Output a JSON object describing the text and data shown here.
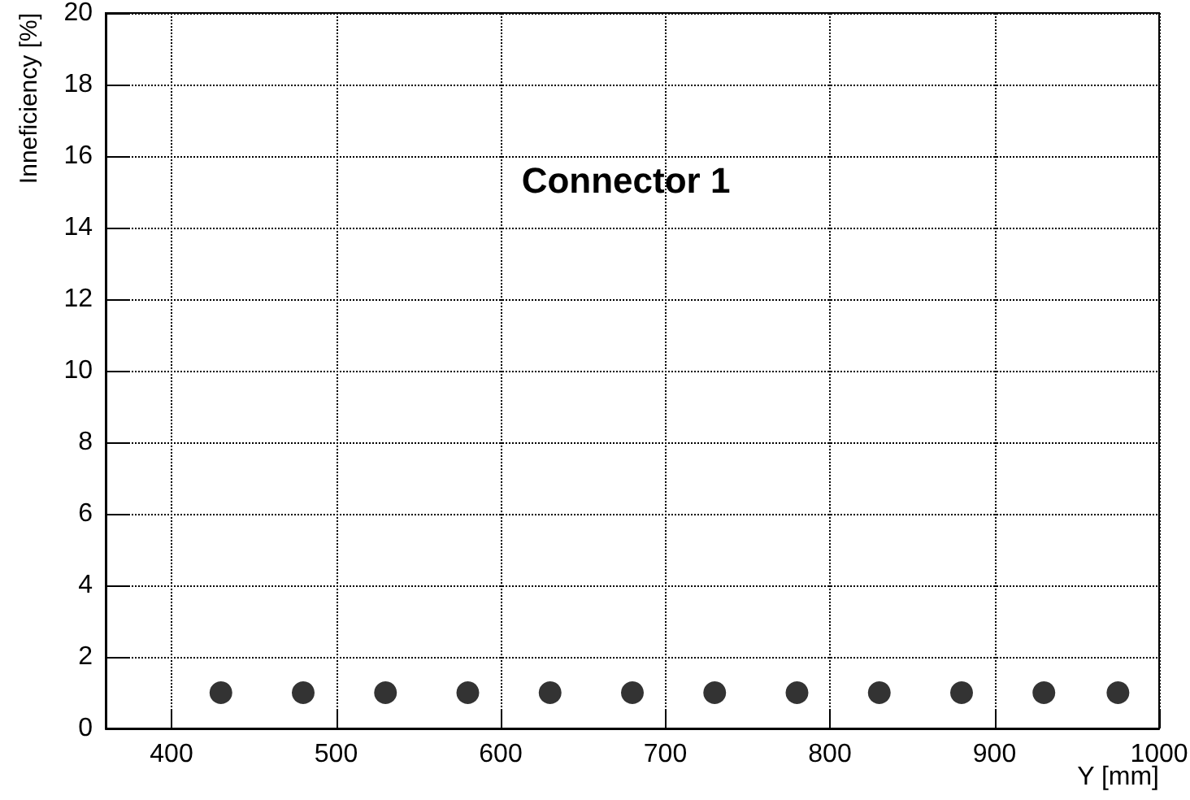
{
  "chart_data": {
    "type": "scatter",
    "title": "Connector 1",
    "xlabel": "Y [mm]",
    "ylabel": "Inneficiency [%]",
    "x": [
      430,
      480,
      530,
      580,
      630,
      680,
      730,
      780,
      830,
      880,
      930,
      975
    ],
    "series": [
      {
        "color": "#000000",
        "values": [
          1,
          1,
          1,
          1,
          1,
          1,
          1,
          1,
          1,
          1,
          1,
          1
        ]
      }
    ],
    "xlim": [
      360,
      1000
    ],
    "xticks": [
      400,
      500,
      600,
      700,
      800,
      900,
      1000
    ],
    "ylim": [
      0,
      20
    ],
    "yticks": [
      0,
      2,
      4,
      6,
      8,
      10,
      12,
      14,
      16,
      18,
      20
    ],
    "grid": true,
    "marker": "circle"
  }
}
